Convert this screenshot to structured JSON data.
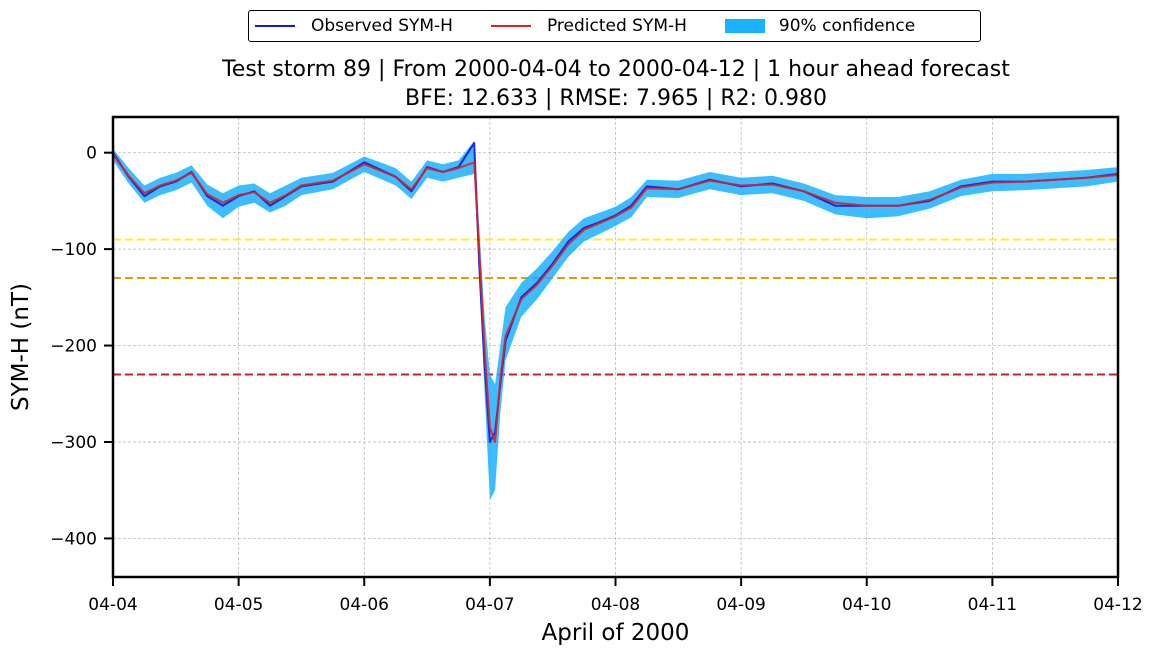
{
  "chart_data": {
    "type": "line",
    "title": "Test storm 89 | From 2000-04-04 to 2000-04-12 | 1 hour ahead forecast",
    "subtitle": "BFE: 12.633 | RMSE: 7.965 | R2: 0.980",
    "xlabel": "April of 2000",
    "ylabel": "SYM-H (nT)",
    "xlim": [
      "2000-04-04",
      "2000-04-12"
    ],
    "ylim": [
      -440,
      37
    ],
    "grid": true,
    "legend_position": "top-center",
    "x_ticks": [
      {
        "value": "2000-04-04",
        "label": "04-04"
      },
      {
        "value": "2000-04-05",
        "label": "04-05"
      },
      {
        "value": "2000-04-06",
        "label": "04-06"
      },
      {
        "value": "2000-04-07",
        "label": "04-07"
      },
      {
        "value": "2000-04-08",
        "label": "04-08"
      },
      {
        "value": "2000-04-09",
        "label": "04-09"
      },
      {
        "value": "2000-04-10",
        "label": "04-10"
      },
      {
        "value": "2000-04-11",
        "label": "04-11"
      },
      {
        "value": "2000-04-12",
        "label": "04-12"
      }
    ],
    "y_ticks": [
      {
        "value": 0,
        "label": "0"
      },
      {
        "value": -100,
        "label": "−100"
      },
      {
        "value": -200,
        "label": "−200"
      },
      {
        "value": -300,
        "label": "−300"
      },
      {
        "value": -400,
        "label": "−400"
      }
    ],
    "thresholds": [
      {
        "value": -90,
        "color": "#ffee22"
      },
      {
        "value": -130,
        "color": "#dd9f00"
      },
      {
        "value": -230,
        "color": "#c62020"
      }
    ],
    "x": [
      "2000-04-04 00:00",
      "2000-04-04 03:00",
      "2000-04-04 06:00",
      "2000-04-04 09:00",
      "2000-04-04 12:00",
      "2000-04-04 15:00",
      "2000-04-04 18:00",
      "2000-04-04 21:00",
      "2000-04-05 00:00",
      "2000-04-05 03:00",
      "2000-04-05 06:00",
      "2000-04-05 09:00",
      "2000-04-05 12:00",
      "2000-04-05 18:00",
      "2000-04-06 00:00",
      "2000-04-06 06:00",
      "2000-04-06 09:00",
      "2000-04-06 12:00",
      "2000-04-06 15:00",
      "2000-04-06 18:00",
      "2000-04-06 21:00",
      "2000-04-06 22:00",
      "2000-04-06 23:00",
      "2000-04-07 00:00",
      "2000-04-07 01:00",
      "2000-04-07 02:00",
      "2000-04-07 03:00",
      "2000-04-07 06:00",
      "2000-04-07 09:00",
      "2000-04-07 12:00",
      "2000-04-07 15:00",
      "2000-04-07 18:00",
      "2000-04-07 21:00",
      "2000-04-08 00:00",
      "2000-04-08 03:00",
      "2000-04-08 06:00",
      "2000-04-08 12:00",
      "2000-04-08 18:00",
      "2000-04-09 00:00",
      "2000-04-09 06:00",
      "2000-04-09 12:00",
      "2000-04-09 18:00",
      "2000-04-10 00:00",
      "2000-04-10 06:00",
      "2000-04-10 12:00",
      "2000-04-10 18:00",
      "2000-04-11 00:00",
      "2000-04-11 06:00",
      "2000-04-11 12:00",
      "2000-04-11 18:00",
      "2000-04-12 00:00"
    ],
    "series": [
      {
        "name": "Observed SYM-H",
        "color": "#1515e0",
        "values": [
          0,
          -25,
          -45,
          -35,
          -30,
          -20,
          -45,
          -55,
          -45,
          -40,
          -55,
          -45,
          -35,
          -30,
          -10,
          -25,
          -40,
          -15,
          -20,
          -15,
          10,
          -120,
          -220,
          -300,
          -290,
          -240,
          -195,
          -150,
          -135,
          -115,
          -92,
          -78,
          -72,
          -65,
          -55,
          -35,
          -38,
          -28,
          -35,
          -32,
          -40,
          -55,
          -55,
          -55,
          -50,
          -35,
          -30,
          -30,
          -28,
          -26,
          -22
        ]
      },
      {
        "name": "Predicted SYM-H",
        "color": "#dd2222",
        "values": [
          -2,
          -24,
          -42,
          -34,
          -29,
          -21,
          -43,
          -52,
          -44,
          -41,
          -52,
          -44,
          -34,
          -29,
          -12,
          -25,
          -38,
          -16,
          -20,
          -16,
          -10,
          -105,
          -205,
          -285,
          -300,
          -235,
          -190,
          -152,
          -137,
          -117,
          -95,
          -80,
          -73,
          -66,
          -57,
          -37,
          -38,
          -29,
          -34,
          -33,
          -40,
          -52,
          -55,
          -55,
          -49,
          -36,
          -31,
          -30,
          -28,
          -26,
          -23
        ]
      }
    ],
    "confidence_band": {
      "name": "90% confidence",
      "color": "#1ab2ff",
      "lower": [
        -8,
        -32,
        -52,
        -44,
        -39,
        -31,
        -55,
        -68,
        -56,
        -52,
        -62,
        -55,
        -44,
        -38,
        -20,
        -34,
        -48,
        -26,
        -30,
        -26,
        -22,
        -135,
        -250,
        -360,
        -350,
        -270,
        -215,
        -170,
        -152,
        -130,
        -108,
        -92,
        -84,
        -76,
        -67,
        -46,
        -47,
        -38,
        -44,
        -42,
        -50,
        -64,
        -68,
        -66,
        -58,
        -45,
        -40,
        -39,
        -37,
        -35,
        -30
      ],
      "upper": [
        4,
        -16,
        -34,
        -26,
        -21,
        -13,
        -33,
        -42,
        -34,
        -32,
        -42,
        -34,
        -26,
        -21,
        -4,
        -16,
        -30,
        -8,
        -12,
        -8,
        12,
        -80,
        -170,
        -230,
        -240,
        -200,
        -160,
        -135,
        -120,
        -102,
        -82,
        -68,
        -62,
        -56,
        -46,
        -28,
        -29,
        -20,
        -26,
        -24,
        -32,
        -44,
        -46,
        -46,
        -40,
        -28,
        -22,
        -22,
        -20,
        -18,
        -15
      ]
    }
  }
}
